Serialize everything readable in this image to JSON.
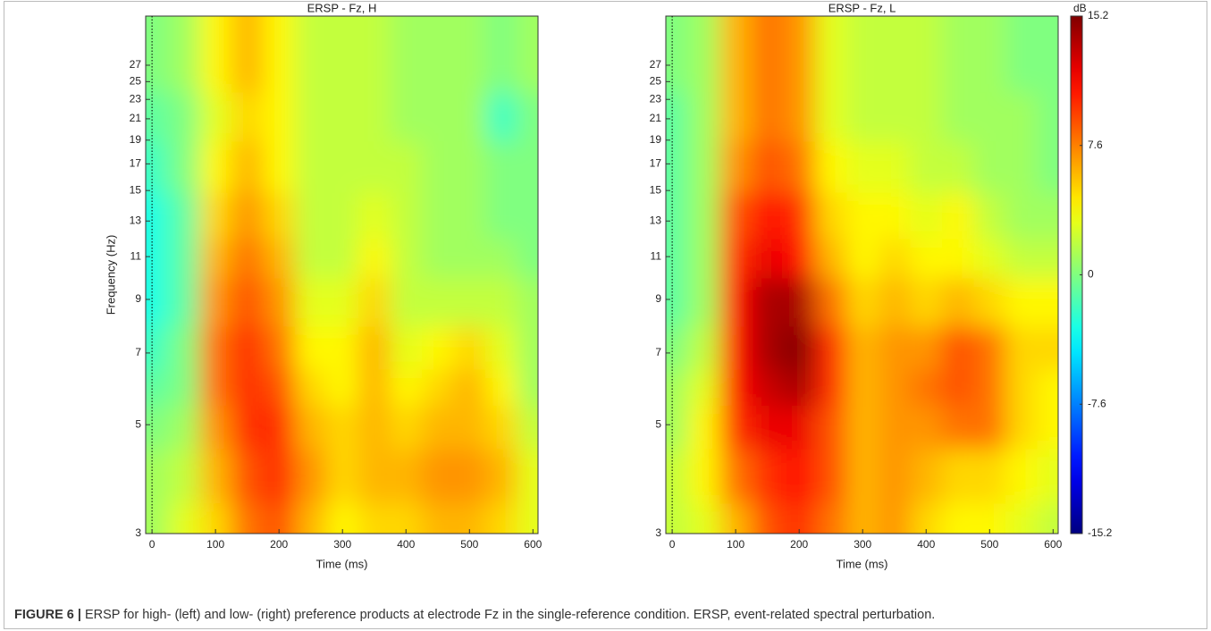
{
  "chart_data": [
    {
      "type": "heatmap",
      "title": "ERSP - Fz, H",
      "xlabel": "Time (ms)",
      "ylabel": "Frequency (Hz)",
      "x": [
        0,
        50,
        100,
        150,
        200,
        250,
        300,
        350,
        400,
        450,
        500,
        550,
        600
      ],
      "y": [
        3,
        4,
        5,
        6,
        7,
        9,
        11,
        13,
        17,
        21,
        27
      ],
      "values": [
        [
          1,
          3,
          5,
          8,
          9,
          6,
          4,
          5,
          5,
          6,
          6,
          5,
          3
        ],
        [
          1,
          2,
          6,
          9,
          10,
          7,
          5,
          6,
          6,
          7,
          7,
          6,
          3
        ],
        [
          0,
          1,
          7,
          10,
          10,
          6,
          5,
          6,
          5,
          6,
          6,
          5,
          2
        ],
        [
          -1,
          0,
          8,
          10,
          9,
          5,
          4,
          6,
          4,
          5,
          6,
          4,
          1
        ],
        [
          -2,
          0,
          8,
          10,
          8,
          4,
          4,
          6,
          3,
          4,
          5,
          3,
          1
        ],
        [
          -3,
          -1,
          7,
          9,
          7,
          3,
          3,
          5,
          2,
          2,
          2,
          2,
          1
        ],
        [
          -3,
          -1,
          6,
          8,
          6,
          2,
          2,
          4,
          2,
          1,
          1,
          1,
          0
        ],
        [
          -3,
          -1,
          5,
          7,
          5,
          2,
          2,
          3,
          2,
          1,
          1,
          0,
          0
        ],
        [
          -2,
          0,
          4,
          6,
          4,
          2,
          2,
          2,
          2,
          1,
          1,
          0,
          0
        ],
        [
          -1,
          0,
          3,
          5,
          4,
          2,
          2,
          2,
          1,
          1,
          1,
          -2,
          0
        ],
        [
          0,
          1,
          4,
          6,
          4,
          2,
          2,
          2,
          1,
          1,
          1,
          0,
          1
        ]
      ],
      "xlim": [
        -10,
        608
      ],
      "ylim": [
        3,
        34
      ],
      "yscale": "log",
      "xticks": [
        0,
        100,
        200,
        300,
        400,
        500,
        600
      ],
      "yticks": [
        3,
        5,
        7,
        9,
        11,
        13,
        15,
        17,
        19,
        21,
        23,
        25,
        27
      ],
      "event_line": 0,
      "colormap": "jet",
      "zlim": [
        -15.2,
        15.2
      ]
    },
    {
      "type": "heatmap",
      "title": "ERSP - Fz, L",
      "xlabel": "Time (ms)",
      "x": [
        0,
        50,
        100,
        150,
        200,
        250,
        300,
        350,
        400,
        450,
        500,
        550,
        600
      ],
      "y": [
        3,
        4,
        5,
        6,
        7,
        9,
        11,
        13,
        17,
        21,
        27
      ],
      "values": [
        [
          2,
          3,
          6,
          9,
          10,
          8,
          6,
          7,
          5,
          4,
          4,
          3,
          2
        ],
        [
          2,
          4,
          8,
          10,
          11,
          9,
          6,
          7,
          6,
          5,
          5,
          4,
          3
        ],
        [
          1,
          4,
          10,
          12,
          12,
          9,
          6,
          7,
          7,
          8,
          8,
          5,
          4
        ],
        [
          1,
          3,
          11,
          13,
          14,
          10,
          6,
          7,
          8,
          9,
          8,
          5,
          4
        ],
        [
          0,
          2,
          11,
          14,
          15,
          10,
          6,
          7,
          7,
          9,
          8,
          5,
          5
        ],
        [
          -1,
          1,
          11,
          14,
          14,
          8,
          5,
          6,
          5,
          6,
          5,
          4,
          4
        ],
        [
          -1,
          1,
          10,
          12,
          11,
          6,
          4,
          5,
          4,
          4,
          3,
          2,
          2
        ],
        [
          -1,
          1,
          9,
          11,
          10,
          5,
          4,
          4,
          3,
          4,
          2,
          1,
          1
        ],
        [
          -1,
          1,
          7,
          9,
          8,
          4,
          3,
          3,
          2,
          2,
          1,
          1,
          0
        ],
        [
          -1,
          1,
          6,
          8,
          7,
          3,
          2,
          2,
          2,
          1,
          1,
          1,
          0
        ],
        [
          0,
          1,
          6,
          8,
          7,
          3,
          2,
          2,
          2,
          1,
          1,
          0,
          0
        ]
      ],
      "xlim": [
        -10,
        608
      ],
      "ylim": [
        3,
        34
      ],
      "yscale": "log",
      "xticks": [
        0,
        100,
        200,
        300,
        400,
        500,
        600
      ],
      "yticks": [
        3,
        5,
        7,
        9,
        11,
        13,
        15,
        17,
        19,
        21,
        23,
        25,
        27
      ],
      "event_line": 0,
      "colormap": "jet",
      "zlim": [
        -15.2,
        15.2
      ],
      "colorbar": {
        "label": "dB",
        "ticks": [
          15.2,
          7.6,
          0,
          -7.6,
          -15.2
        ]
      }
    }
  ],
  "caption": {
    "label": "FIGURE 6 |",
    "text": " ERSP for high- (left) and low- (right) preference products at electrode Fz in the single-reference condition. ERSP, event-related spectral perturbation."
  }
}
